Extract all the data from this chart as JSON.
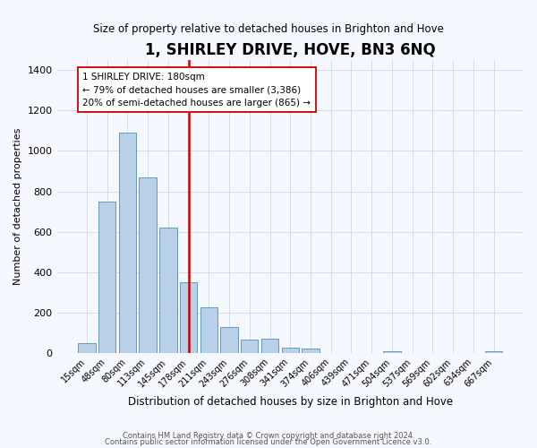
{
  "title": "1, SHIRLEY DRIVE, HOVE, BN3 6NQ",
  "subtitle": "Size of property relative to detached houses in Brighton and Hove",
  "xlabel": "Distribution of detached houses by size in Brighton and Hove",
  "ylabel": "Number of detached properties",
  "bar_labels": [
    "15sqm",
    "48sqm",
    "80sqm",
    "113sqm",
    "145sqm",
    "178sqm",
    "211sqm",
    "243sqm",
    "276sqm",
    "308sqm",
    "341sqm",
    "374sqm",
    "406sqm",
    "439sqm",
    "471sqm",
    "504sqm",
    "537sqm",
    "569sqm",
    "602sqm",
    "634sqm",
    "667sqm"
  ],
  "bar_values": [
    50,
    750,
    1090,
    870,
    620,
    350,
    225,
    130,
    65,
    70,
    25,
    20,
    0,
    0,
    0,
    10,
    0,
    0,
    0,
    0,
    10
  ],
  "bar_color": "#b8d0e8",
  "bar_edge_color": "#6699bb",
  "vline_index": 5,
  "vline_color": "#cc0000",
  "annotation_text": "1 SHIRLEY DRIVE: 180sqm\n← 79% of detached houses are smaller (3,386)\n20% of semi-detached houses are larger (865) →",
  "annotation_box_color": "#ffffff",
  "annotation_box_edge": "#cc0000",
  "ylim": [
    0,
    1450
  ],
  "yticks": [
    0,
    200,
    400,
    600,
    800,
    1000,
    1200,
    1400
  ],
  "footer_line1": "Contains HM Land Registry data © Crown copyright and database right 2024.",
  "footer_line2": "Contains public sector information licensed under the Open Government Licence v3.0.",
  "bg_color": "#f5f9ff",
  "grid_color": "#d0dde8"
}
